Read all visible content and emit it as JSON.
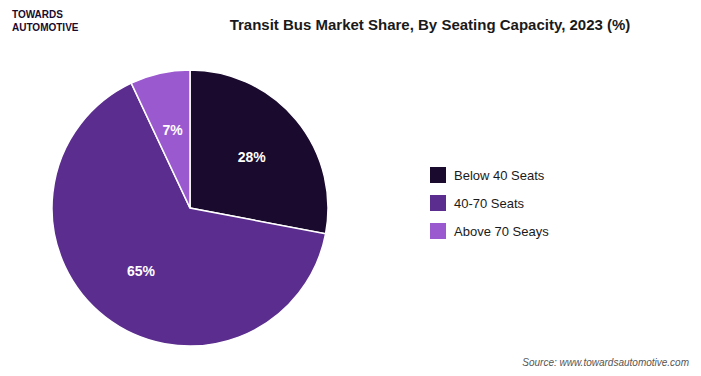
{
  "chart_data": {
    "type": "pie",
    "title": "Transit Bus Market Share, By Seating Capacity, 2023 (%)",
    "categories": [
      "Below 40 Seats",
      "40-70 Seats",
      "Above 70 Seays"
    ],
    "values": [
      28,
      65,
      7
    ],
    "value_labels": [
      "28%",
      "65%",
      "7%"
    ],
    "colors": [
      "#1a0a2e",
      "#5b2d8e",
      "#9b59d0"
    ],
    "data_labels": true,
    "legend": "right",
    "annotations": [
      "TOWARDS",
      "AUTOMOTIVE",
      "Source: www.towardsautomotive.com"
    ]
  }
}
